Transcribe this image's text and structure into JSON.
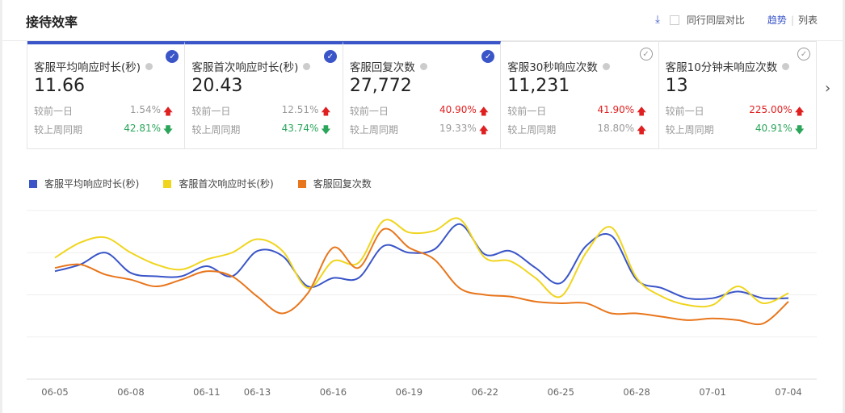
{
  "header": {
    "title": "接待效率",
    "download_icon": "download-icon",
    "compare_label": "同行同层对比",
    "view_trend": "趋势",
    "view_list": "列表",
    "separator": "|"
  },
  "cards": [
    {
      "name": "客服平均响应时长(秒)",
      "value": "11.66",
      "selected": true,
      "day_label": "较前一日",
      "day_pct": "1.54%",
      "day_dir": "up",
      "day_pct_color": "gray",
      "week_label": "较上周同期",
      "week_pct": "42.81%",
      "week_dir": "down",
      "week_pct_color": "green"
    },
    {
      "name": "客服首次响应时长(秒)",
      "value": "20.43",
      "selected": true,
      "day_label": "较前一日",
      "day_pct": "12.51%",
      "day_dir": "up",
      "day_pct_color": "gray",
      "week_label": "较上周同期",
      "week_pct": "43.74%",
      "week_dir": "down",
      "week_pct_color": "green"
    },
    {
      "name": "客服回复次数",
      "value": "27,772",
      "selected": true,
      "day_label": "较前一日",
      "day_pct": "40.90%",
      "day_dir": "up",
      "day_pct_color": "red",
      "week_label": "较上周同期",
      "week_pct": "19.33%",
      "week_dir": "up",
      "week_pct_color": "gray"
    },
    {
      "name": "客服30秒响应次数",
      "value": "11,231",
      "selected": false,
      "day_label": "较前一日",
      "day_pct": "41.90%",
      "day_dir": "up",
      "day_pct_color": "red",
      "week_label": "较上周同期",
      "week_pct": "18.80%",
      "week_dir": "up",
      "week_pct_color": "gray"
    },
    {
      "name": "客服10分钟未响应次数",
      "value": "13",
      "selected": false,
      "day_label": "较前一日",
      "day_pct": "225.00%",
      "day_dir": "up",
      "day_pct_color": "red",
      "week_label": "较上周同期",
      "week_pct": "40.91%",
      "week_dir": "down",
      "week_pct_color": "green"
    }
  ],
  "colors": {
    "accent": "#3a55c8",
    "up": "#e02020",
    "down": "#2aa55a"
  },
  "chart_data": {
    "type": "line",
    "title": "",
    "xlabel": "",
    "ylabel": "",
    "y_axis_labels_shown": false,
    "ylim": [
      0,
      100
    ],
    "grid": true,
    "legend_placement": "top-left",
    "x": [
      "06-05",
      "06-06",
      "06-07",
      "06-08",
      "06-09",
      "06-10",
      "06-11",
      "06-12",
      "06-13",
      "06-14",
      "06-15",
      "06-16",
      "06-17",
      "06-18",
      "06-19",
      "06-20",
      "06-21",
      "06-22",
      "06-23",
      "06-24",
      "06-25",
      "06-26",
      "06-27",
      "06-28",
      "06-29",
      "06-30",
      "07-01",
      "07-02",
      "07-03",
      "07-04"
    ],
    "xticks": [
      "06-05",
      "06-08",
      "06-11",
      "06-13",
      "06-16",
      "06-19",
      "06-22",
      "06-25",
      "06-28",
      "07-01",
      "07-04"
    ],
    "series": [
      {
        "name": "客服平均响应时长(秒)",
        "color": "#3a55c8",
        "values": [
          64,
          68,
          75,
          63,
          61,
          61,
          67,
          61,
          76,
          73,
          55,
          60,
          60,
          79,
          75,
          77,
          92,
          74,
          76,
          66,
          57,
          79,
          85,
          59,
          54,
          48,
          48,
          52,
          48,
          48
        ]
      },
      {
        "name": "客服首次响应时长(秒)",
        "color": "#f0d51e",
        "values": [
          72,
          81,
          84,
          75,
          68,
          65,
          71,
          75,
          83,
          76,
          54,
          70,
          69,
          94,
          87,
          88,
          95,
          72,
          70,
          60,
          49,
          75,
          90,
          60,
          49,
          44,
          44,
          55,
          45,
          51
        ]
      },
      {
        "name": "客服回复次数",
        "color": "#e8761c",
        "values": [
          66,
          68,
          62,
          59,
          55,
          59,
          64,
          61,
          49,
          39,
          51,
          78,
          66,
          89,
          78,
          71,
          54,
          50,
          49,
          46,
          45,
          45,
          39,
          39,
          37,
          35,
          36,
          35,
          33,
          46
        ]
      }
    ]
  }
}
